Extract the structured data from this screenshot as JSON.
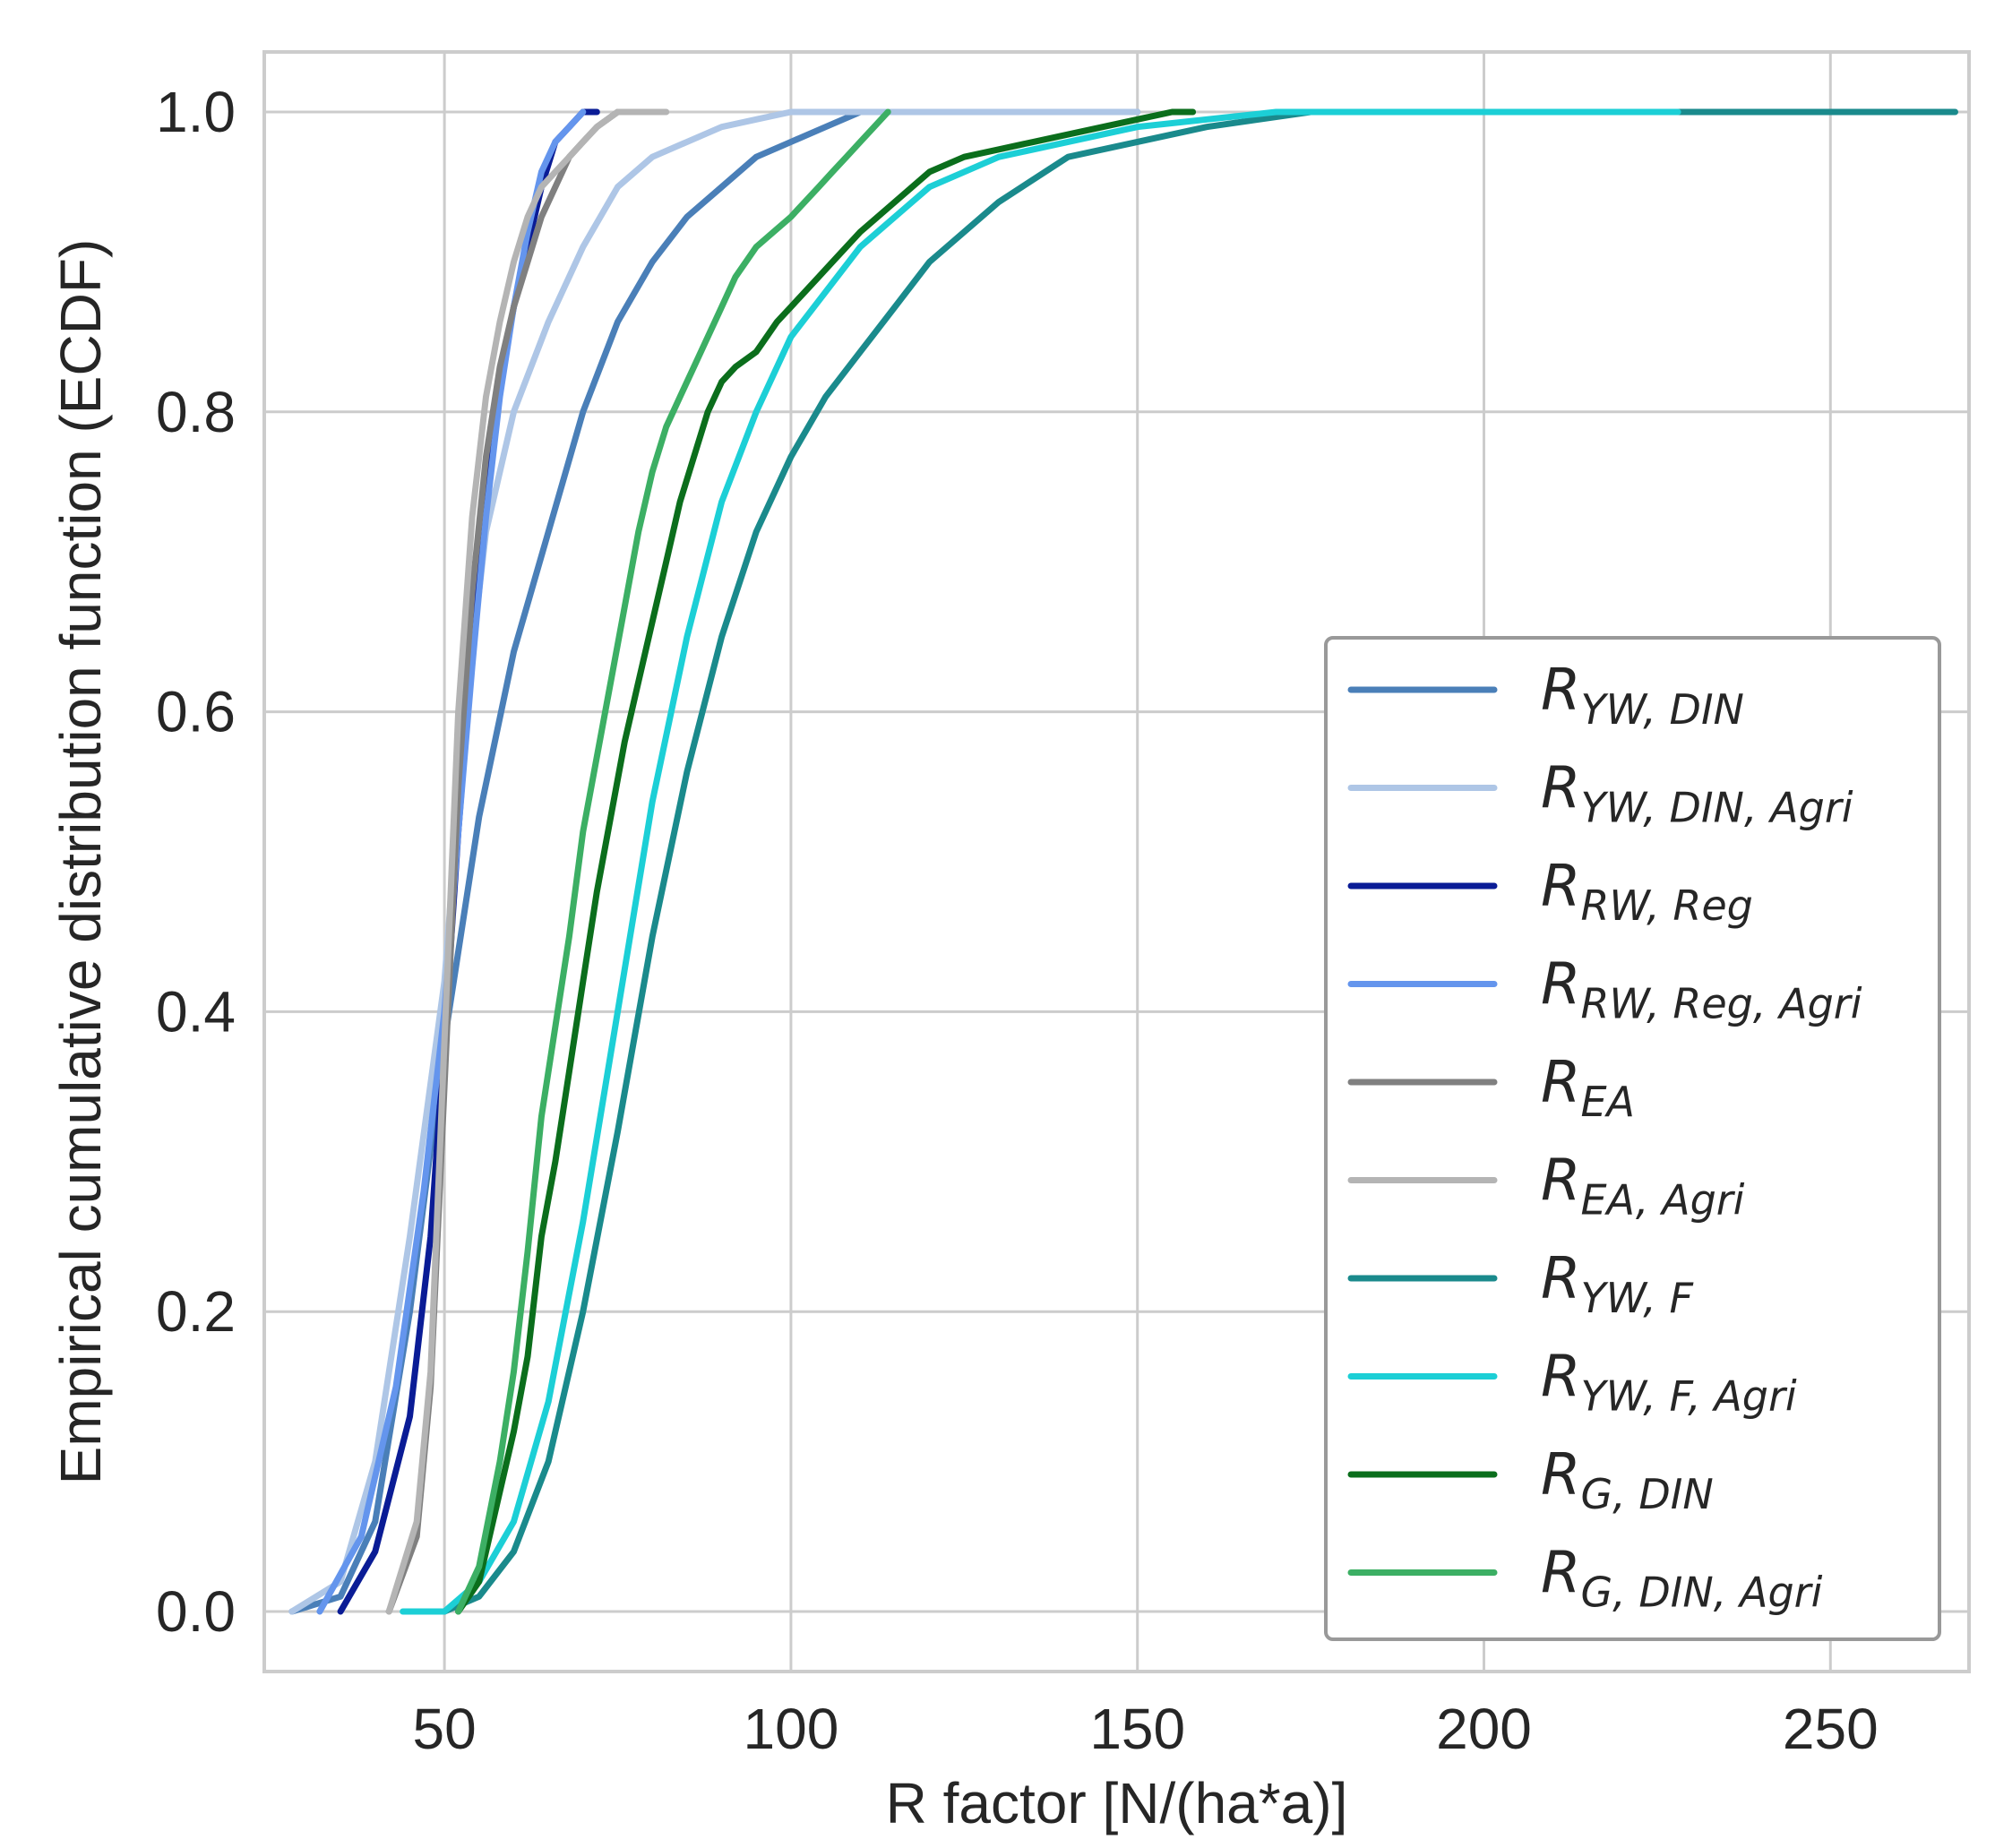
{
  "chart_data": {
    "type": "line",
    "title": "",
    "xlabel": "R factor [N/(ha*a)]",
    "ylabel": "Empirical cumulative distribution function (ECDF)",
    "xlim": [
      24,
      270
    ],
    "ylim": [
      -0.04,
      1.04
    ],
    "xticks": [
      50,
      100,
      150,
      200,
      250
    ],
    "xtick_labels": [
      "50",
      "100",
      "150",
      "200",
      "250"
    ],
    "yticks": [
      0.0,
      0.2,
      0.4,
      0.6,
      0.8,
      1.0
    ],
    "ytick_labels": [
      "0.0",
      "0.2",
      "0.4",
      "0.6",
      "0.8",
      "1.0"
    ],
    "grid": true,
    "legend_position": "bottom-right",
    "series": [
      {
        "name": "R",
        "subscript": "YW, DIN",
        "color": "#4a7fb8",
        "x": [
          28,
          35,
          40,
          45,
          50,
          55,
          60,
          65,
          70,
          75,
          80,
          85,
          90,
          95,
          100,
          105,
          110,
          120,
          135,
          150
        ],
        "y": [
          0.0,
          0.01,
          0.06,
          0.2,
          0.38,
          0.53,
          0.64,
          0.72,
          0.8,
          0.86,
          0.9,
          0.93,
          0.95,
          0.97,
          0.98,
          0.99,
          1.0,
          1.0,
          1.0,
          1.0
        ]
      },
      {
        "name": "R",
        "subscript": "YW, DIN, Agri",
        "color": "#aec6e6",
        "x": [
          28,
          35,
          40,
          45,
          50,
          53,
          56,
          60,
          65,
          70,
          75,
          80,
          85,
          90,
          95,
          100,
          110,
          130,
          150
        ],
        "y": [
          0.0,
          0.02,
          0.1,
          0.25,
          0.42,
          0.6,
          0.72,
          0.8,
          0.86,
          0.91,
          0.95,
          0.97,
          0.98,
          0.99,
          0.995,
          1.0,
          1.0,
          1.0,
          1.0
        ]
      },
      {
        "name": "R",
        "subscript": "RW, Reg",
        "color": "#0a1c96",
        "x": [
          35,
          40,
          45,
          48,
          50,
          52,
          54,
          56,
          58,
          60,
          62,
          64,
          66,
          68,
          70,
          72
        ],
        "y": [
          0.0,
          0.04,
          0.13,
          0.25,
          0.38,
          0.52,
          0.64,
          0.74,
          0.82,
          0.87,
          0.91,
          0.95,
          0.98,
          0.99,
          1.0,
          1.0
        ]
      },
      {
        "name": "R",
        "subscript": "RW, Reg, Agri",
        "color": "#6495ed",
        "x": [
          32,
          38,
          43,
          47,
          50,
          52,
          54,
          56,
          58,
          60,
          62,
          64,
          66,
          68,
          70
        ],
        "y": [
          0.0,
          0.05,
          0.15,
          0.28,
          0.4,
          0.52,
          0.63,
          0.73,
          0.81,
          0.87,
          0.92,
          0.96,
          0.98,
          0.99,
          1.0
        ]
      },
      {
        "name": "R",
        "subscript": "EA",
        "color": "#808080",
        "x": [
          42,
          46,
          48,
          50,
          52,
          54,
          56,
          58,
          60,
          62,
          64,
          66,
          68,
          70,
          72,
          75,
          80
        ],
        "y": [
          0.0,
          0.05,
          0.15,
          0.35,
          0.55,
          0.68,
          0.77,
          0.83,
          0.87,
          0.9,
          0.93,
          0.95,
          0.97,
          0.98,
          0.99,
          1.0,
          1.0
        ]
      },
      {
        "name": "R",
        "subscript": "EA, Agri",
        "color": "#b4b4b4",
        "x": [
          42,
          46,
          48,
          50,
          52,
          54,
          56,
          58,
          60,
          62,
          64,
          66,
          68,
          70,
          72,
          75,
          82
        ],
        "y": [
          0.0,
          0.06,
          0.16,
          0.38,
          0.6,
          0.73,
          0.81,
          0.86,
          0.9,
          0.93,
          0.95,
          0.96,
          0.97,
          0.98,
          0.99,
          1.0,
          1.0
        ]
      },
      {
        "name": "R",
        "subscript": "YW, F",
        "color": "#1a8a8c",
        "x": [
          45,
          50,
          55,
          60,
          65,
          70,
          75,
          80,
          85,
          90,
          95,
          100,
          105,
          110,
          115,
          120,
          130,
          140,
          150,
          160,
          175,
          200,
          230,
          268
        ],
        "y": [
          0.0,
          0.0,
          0.01,
          0.04,
          0.1,
          0.2,
          0.32,
          0.45,
          0.56,
          0.65,
          0.72,
          0.77,
          0.81,
          0.84,
          0.87,
          0.9,
          0.94,
          0.97,
          0.98,
          0.99,
          1.0,
          1.0,
          1.0,
          1.0
        ]
      },
      {
        "name": "R",
        "subscript": "YW, F, Agri",
        "color": "#1ccfd6",
        "x": [
          44,
          50,
          55,
          60,
          65,
          70,
          75,
          80,
          85,
          90,
          95,
          100,
          105,
          110,
          120,
          130,
          140,
          150,
          170,
          200,
          228
        ],
        "y": [
          0.0,
          0.0,
          0.02,
          0.06,
          0.14,
          0.26,
          0.4,
          0.54,
          0.65,
          0.74,
          0.8,
          0.85,
          0.88,
          0.91,
          0.95,
          0.97,
          0.98,
          0.99,
          1.0,
          1.0,
          1.0
        ]
      },
      {
        "name": "R",
        "subscript": "G, DIN",
        "color": "#0b6e1c",
        "x": [
          52,
          55,
          58,
          60,
          62,
          64,
          66,
          68,
          70,
          72,
          74,
          76,
          78,
          80,
          82,
          84,
          86,
          88,
          90,
          92,
          95,
          98,
          100,
          102,
          104,
          106,
          108,
          110,
          115,
          120,
          125,
          130,
          135,
          140,
          145,
          150,
          155,
          158
        ],
        "y": [
          0.0,
          0.02,
          0.08,
          0.12,
          0.17,
          0.25,
          0.3,
          0.36,
          0.42,
          0.48,
          0.53,
          0.58,
          0.62,
          0.66,
          0.7,
          0.74,
          0.77,
          0.8,
          0.82,
          0.83,
          0.84,
          0.86,
          0.87,
          0.88,
          0.89,
          0.9,
          0.91,
          0.92,
          0.94,
          0.96,
          0.97,
          0.975,
          0.98,
          0.985,
          0.99,
          0.995,
          1.0,
          1.0
        ]
      },
      {
        "name": "R",
        "subscript": "G, DIN, Agri",
        "color": "#3caf64",
        "x": [
          52,
          55,
          58,
          60,
          62,
          64,
          66,
          68,
          70,
          72,
          74,
          76,
          78,
          80,
          82,
          84,
          86,
          88,
          90,
          92,
          95,
          100,
          104,
          106,
          108,
          110,
          112,
          114
        ],
        "y": [
          0.0,
          0.03,
          0.1,
          0.16,
          0.24,
          0.33,
          0.39,
          0.45,
          0.52,
          0.57,
          0.62,
          0.67,
          0.72,
          0.76,
          0.79,
          0.81,
          0.83,
          0.85,
          0.87,
          0.89,
          0.91,
          0.93,
          0.95,
          0.96,
          0.97,
          0.98,
          0.99,
          1.0
        ]
      }
    ]
  }
}
